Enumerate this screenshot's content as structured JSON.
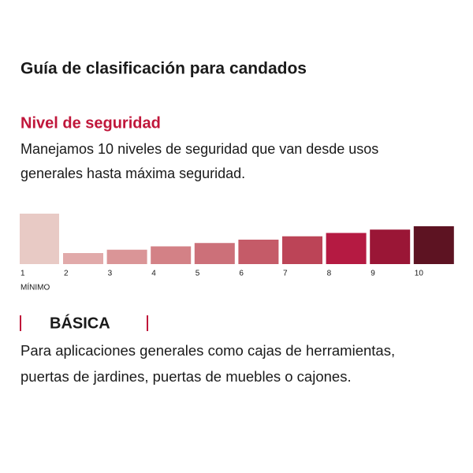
{
  "header": {
    "title": "Guía de clasificación para candados"
  },
  "section": {
    "heading": "Nivel de seguridad",
    "text_lines": [
      "Manejamos 10 niveles de seguridad que van desde usos",
      "generales hasta máxima seguridad."
    ]
  },
  "scale": {
    "levels": [
      {
        "label": "1",
        "color": "#e8cac5"
      },
      {
        "label": "2",
        "color": "#e1aaaa"
      },
      {
        "label": "3",
        "color": "#da9597"
      },
      {
        "label": "4",
        "color": "#d38186"
      },
      {
        "label": "5",
        "color": "#cc7079"
      },
      {
        "label": "6",
        "color": "#c55b68"
      },
      {
        "label": "7",
        "color": "#bc4457"
      },
      {
        "label": "8",
        "color": "#b51a42"
      },
      {
        "label": "9",
        "color": "#9a1636"
      },
      {
        "label": "10",
        "color": "#5d1322"
      }
    ],
    "min_label": "MÍNIMO"
  },
  "level_detail": {
    "name": "BÁSICA",
    "text_lines": [
      "Para aplicaciones generales como cajas de herramientas,",
      "puertas de jardines, puertas de muebles o cajones."
    ]
  }
}
